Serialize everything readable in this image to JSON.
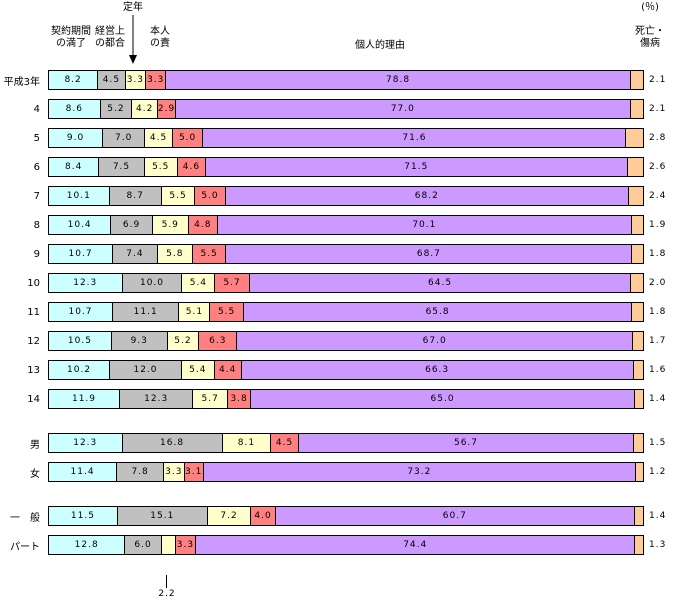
{
  "header": {
    "percent": "(％)",
    "teinen": "定年",
    "col_contract_line1": "契約期間",
    "col_contract_line2": "の満了",
    "col_management_line1": "経営上",
    "col_management_line2": "の都合",
    "col_self_line1": "本人",
    "col_self_line2": "の責",
    "col_personal": "個人的理由",
    "col_death_line1": "死亡・",
    "col_death_line2": "傷病"
  },
  "chart_data": {
    "type": "bar",
    "orientation": "horizontal",
    "stacked": true,
    "unit": "%",
    "xlim": [
      0,
      100
    ],
    "series_names": [
      "契約期間の満了",
      "経営上の都合",
      "定年",
      "本人の責",
      "個人的理由",
      "死亡・傷病"
    ],
    "colors": [
      "#ccffff",
      "#c0c0c0",
      "#ffffcc",
      "#ff8080",
      "#cc99ff",
      "#ffcc99"
    ],
    "rows": [
      {
        "label": "平成3年",
        "values": [
          8.2,
          4.5,
          3.3,
          3.3,
          78.8,
          2.1
        ]
      },
      {
        "label": "4",
        "values": [
          8.6,
          5.2,
          4.2,
          2.9,
          77.0,
          2.1
        ]
      },
      {
        "label": "5",
        "values": [
          9.0,
          7.0,
          4.5,
          5.0,
          71.6,
          2.8
        ]
      },
      {
        "label": "6",
        "values": [
          8.4,
          7.5,
          5.5,
          4.6,
          71.5,
          2.6
        ]
      },
      {
        "label": "7",
        "values": [
          10.1,
          8.7,
          5.5,
          5.0,
          68.2,
          2.4
        ]
      },
      {
        "label": "8",
        "values": [
          10.4,
          6.9,
          5.9,
          4.8,
          70.1,
          1.9
        ]
      },
      {
        "label": "9",
        "values": [
          10.7,
          7.4,
          5.8,
          5.5,
          68.7,
          1.8
        ]
      },
      {
        "label": "10",
        "values": [
          12.3,
          10.0,
          5.4,
          5.7,
          64.5,
          2.0
        ]
      },
      {
        "label": "11",
        "values": [
          10.7,
          11.1,
          5.1,
          5.5,
          65.8,
          1.8
        ]
      },
      {
        "label": "12",
        "values": [
          10.5,
          9.3,
          5.2,
          6.3,
          67.0,
          1.7
        ]
      },
      {
        "label": "13",
        "values": [
          10.2,
          12.0,
          5.4,
          4.4,
          66.3,
          1.6
        ]
      },
      {
        "label": "14",
        "values": [
          11.9,
          12.3,
          5.7,
          3.8,
          65.0,
          1.4
        ]
      },
      {
        "label": "男",
        "gap_before": true,
        "values": [
          12.3,
          16.8,
          8.1,
          4.5,
          56.7,
          1.5
        ]
      },
      {
        "label": "女",
        "values": [
          11.4,
          7.8,
          3.3,
          3.1,
          73.2,
          1.2
        ]
      },
      {
        "label": "一　般",
        "gap_before": true,
        "values": [
          11.5,
          15.1,
          7.2,
          4.0,
          60.7,
          1.4
        ]
      },
      {
        "label": "パート",
        "values": [
          12.8,
          6.0,
          2.2,
          3.3,
          74.4,
          1.3
        ],
        "hidden_segment_labels": [
          2
        ]
      }
    ],
    "annotation": {
      "text": "2.2",
      "row": "パート",
      "series": "定年"
    }
  }
}
